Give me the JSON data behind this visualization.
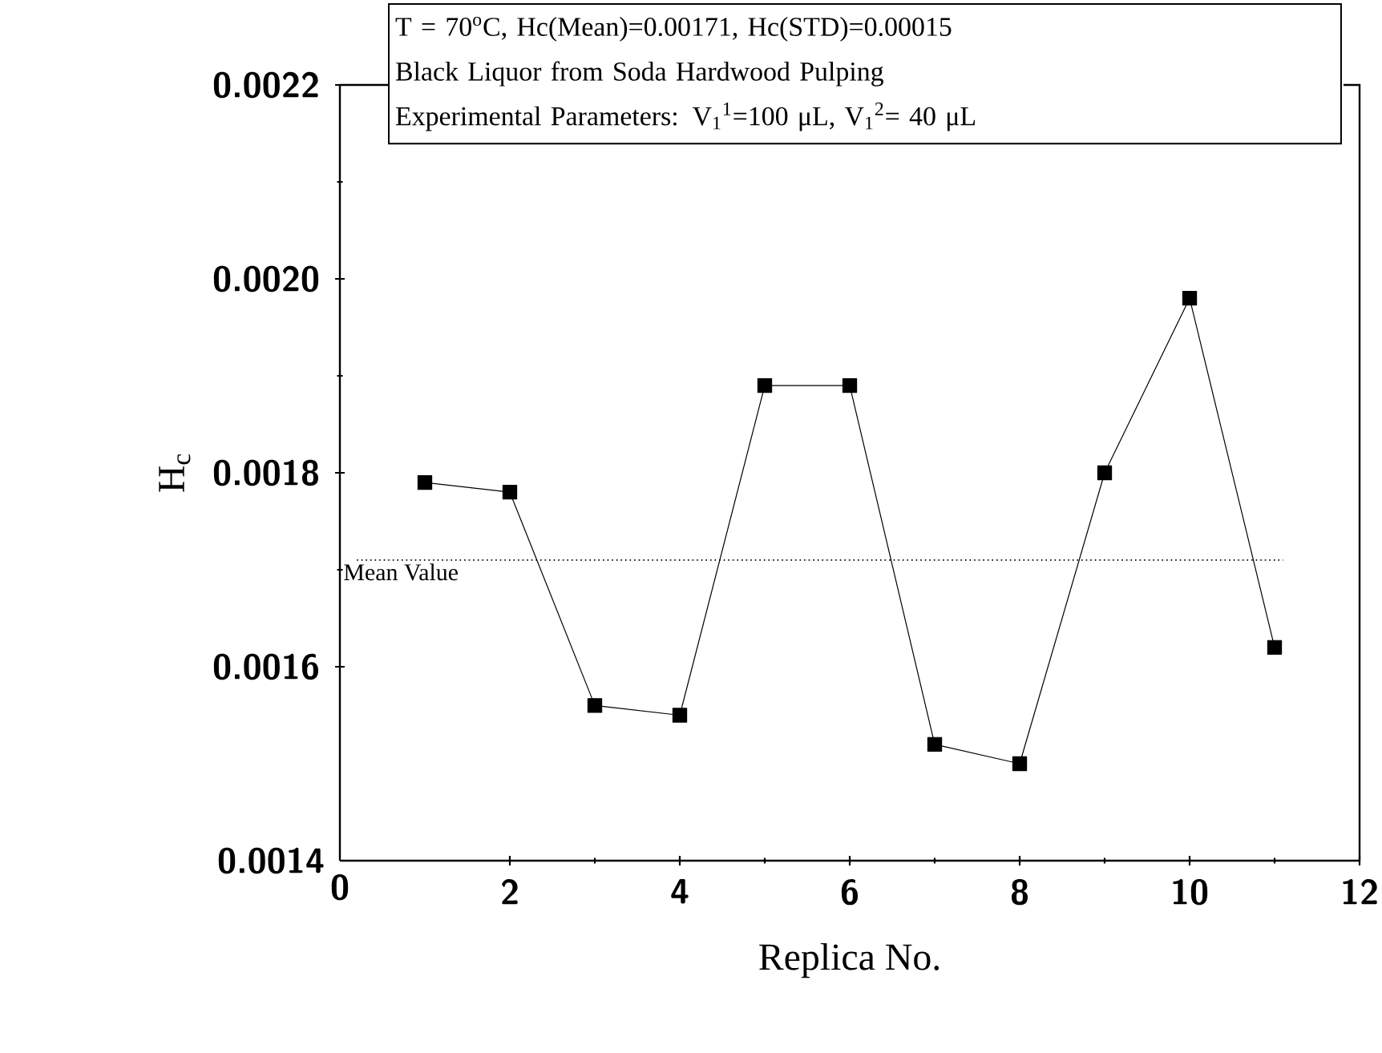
{
  "chart_data": {
    "type": "line",
    "xlabel": "Replica No.",
    "ylabel": "H$_{c}$",
    "x": [
      1,
      2,
      3,
      4,
      5,
      6,
      7,
      8,
      9,
      10,
      11
    ],
    "values": [
      0.00179,
      0.00178,
      0.00156,
      0.00155,
      0.00189,
      0.00189,
      0.00152,
      0.0015,
      0.0018,
      0.00198,
      0.00162
    ],
    "color": "#000000",
    "marker": "square",
    "line_style": "solid",
    "xlim": [
      0,
      12
    ],
    "xticks": [
      0,
      2,
      4,
      6,
      8,
      10,
      12
    ],
    "ylim": [
      0.0014,
      0.0022
    ],
    "yticks": [
      0.0014,
      0.0016,
      0.0018,
      {
        "value": 0.002,
        "label": "0.0020"
      },
      0.0022
    ],
    "ref_lines": [
      {
        "axis": "y",
        "value": 0.00171,
        "label": "Mean Value",
        "line_style": "dotted",
        "color": "#000000"
      }
    ],
    "annotations": [
      "T = 70$^{o}$C, Hc(Mean)=0.00171, Hc(STD)=0.00015",
      "Black Liquor from Soda Hardwood Pulping",
      "Experimental Parameters: V$_{1}$$^{1}$=100 μL, V$_{1}$$^{2}$= 40 μL"
    ]
  }
}
